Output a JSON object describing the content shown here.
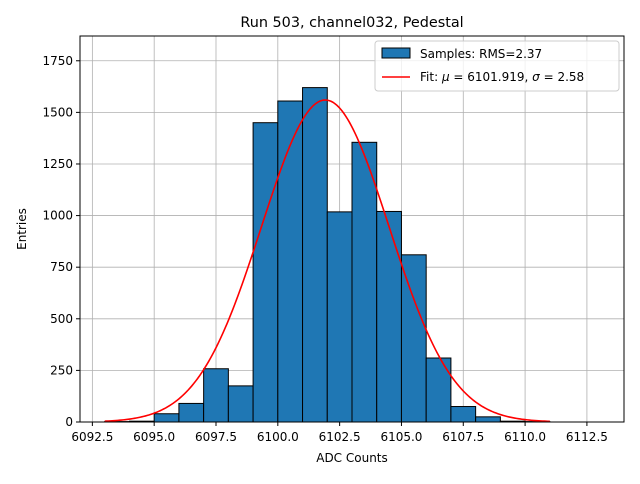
{
  "chart_data": {
    "type": "bar",
    "title": "Run 503, channel032, Pedestal",
    "xlabel": "ADC Counts",
    "ylabel": "Entries",
    "xlim": [
      6092.0,
      6114.0
    ],
    "ylim": [
      0,
      1870
    ],
    "x_ticks": [
      6092.5,
      6095.0,
      6097.5,
      6100.0,
      6102.5,
      6105.0,
      6107.5,
      6110.0,
      6112.5
    ],
    "x_tick_labels": [
      "6092.5",
      "6095.0",
      "6097.5",
      "6100.0",
      "6102.5",
      "6105.0",
      "6107.5",
      "6110.0",
      "6112.5"
    ],
    "y_ticks": [
      0,
      250,
      500,
      750,
      1000,
      1250,
      1500,
      1750
    ],
    "y_tick_labels": [
      "0",
      "250",
      "500",
      "750",
      "1000",
      "1250",
      "1500",
      "1750"
    ],
    "grid": true,
    "legend_position": "top-right",
    "histogram": {
      "name": "Samples: RMS=2.37",
      "color": "#1f77b4",
      "edge_color": "#000000",
      "bin_edges": [
        6093,
        6094,
        6095,
        6096,
        6097,
        6098,
        6099,
        6100,
        6101,
        6102,
        6103,
        6104,
        6105,
        6106,
        6107,
        6108,
        6109,
        6110,
        6111,
        6112,
        6113
      ],
      "values": [
        2,
        4,
        40,
        90,
        258,
        175,
        1450,
        1555,
        1620,
        1018,
        1355,
        1020,
        810,
        310,
        75,
        25,
        4,
        2,
        0,
        0
      ]
    },
    "fit": {
      "name_prefix": "Fit: ",
      "mu_symbol": "μ",
      "mu_value": " = 6101.919, ",
      "sigma_symbol": "σ",
      "sigma_value": " = 2.58",
      "color": "#ff0000",
      "mu": 6101.919,
      "sigma": 2.58,
      "amplitude": 1560,
      "x_range": [
        6093,
        6111
      ]
    }
  }
}
